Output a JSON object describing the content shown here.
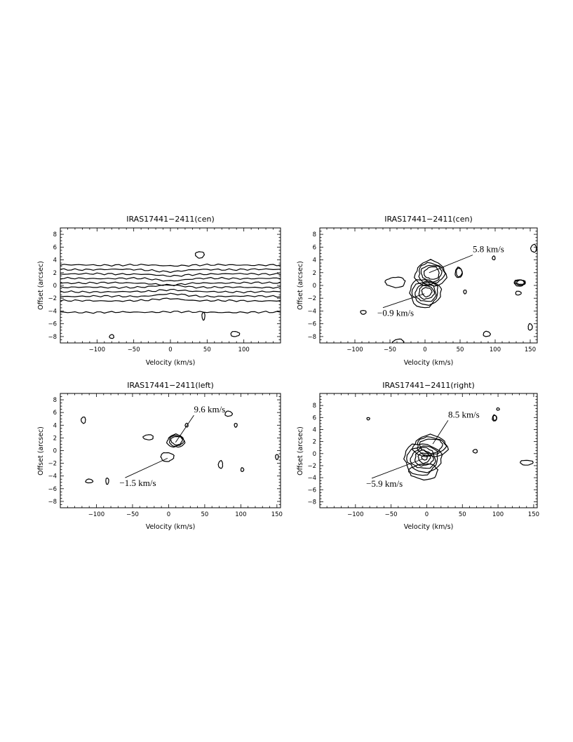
{
  "chart_data": [
    {
      "type": "contour",
      "title": "IRAS17441−2411(cen)",
      "xlabel": "Velocity (km/s)",
      "ylabel": "Offset (arcsec)",
      "xlim": [
        -150,
        150
      ],
      "ylim": [
        -9,
        9
      ],
      "xticks": [
        -100,
        -50,
        0,
        50,
        100
      ],
      "yticks": [
        -8,
        -6,
        -4,
        -2,
        0,
        2,
        4,
        6,
        8
      ],
      "grid": false,
      "annotations": [],
      "features": [
        {
          "kind": "horizontal-band",
          "y": 3.2
        },
        {
          "kind": "horizontal-band",
          "y": 2.5
        },
        {
          "kind": "horizontal-band",
          "y": 1.8
        },
        {
          "kind": "horizontal-band",
          "y": 1.1
        },
        {
          "kind": "horizontal-band",
          "y": 0.4
        },
        {
          "kind": "horizontal-band",
          "y": -0.3
        },
        {
          "kind": "horizontal-band",
          "y": -1.0
        },
        {
          "kind": "horizontal-band",
          "y": -1.7
        },
        {
          "kind": "horizontal-band",
          "y": -2.4
        },
        {
          "kind": "horizontal-band",
          "y": -4.2
        },
        {
          "kind": "blob",
          "x": 40,
          "y": 4.8,
          "sx": 6,
          "sy": 0.5,
          "levels": 1
        },
        {
          "kind": "blob",
          "x": -80,
          "y": -8.0,
          "sx": 3,
          "sy": 0.3,
          "levels": 1
        },
        {
          "kind": "blob",
          "x": 88,
          "y": -7.6,
          "sx": 6,
          "sy": 0.4,
          "levels": 1
        },
        {
          "kind": "blob",
          "x": 45,
          "y": -4.8,
          "sx": 2,
          "sy": 0.6,
          "levels": 1
        }
      ]
    },
    {
      "type": "contour",
      "title": "IRAS17441−2411(cen)",
      "xlabel": "Velocity (km/s)",
      "ylabel": "Offset (arcsec)",
      "xlim": [
        -150,
        160
      ],
      "ylim": [
        -9,
        9
      ],
      "xticks": [
        -100,
        -50,
        0,
        50,
        100,
        150
      ],
      "yticks": [
        -8,
        -6,
        -4,
        -2,
        0,
        2,
        4,
        6,
        8
      ],
      "grid": false,
      "annotations": [
        {
          "text": "5.8 km/s",
          "x": 5.8,
          "y": 2.0,
          "label_x": 68,
          "label_y": 5.2
        },
        {
          "text": "−0.9 km/s",
          "x": -0.9,
          "y": -1.3,
          "label_x": -68,
          "label_y": -4.8
        }
      ],
      "features": [
        {
          "kind": "blob",
          "x": 8,
          "y": 1.8,
          "sx": 22,
          "sy": 2.0,
          "levels": 4
        },
        {
          "kind": "blob",
          "x": 0,
          "y": -1.2,
          "sx": 22,
          "sy": 2.2,
          "levels": 5
        },
        {
          "kind": "blob",
          "x": -42,
          "y": 0.5,
          "sx": 14,
          "sy": 0.8,
          "levels": 1
        },
        {
          "kind": "blob",
          "x": 48,
          "y": 2.0,
          "sx": 5,
          "sy": 0.8,
          "levels": 2
        },
        {
          "kind": "blob",
          "x": 135,
          "y": 0.4,
          "sx": 8,
          "sy": 0.5,
          "levels": 3
        },
        {
          "kind": "blob",
          "x": -38,
          "y": -9.0,
          "sx": 8,
          "sy": 0.6,
          "levels": 1
        },
        {
          "kind": "blob",
          "x": 88,
          "y": -7.6,
          "sx": 5,
          "sy": 0.4,
          "levels": 1
        },
        {
          "kind": "blob",
          "x": -88,
          "y": -4.2,
          "sx": 4,
          "sy": 0.3,
          "levels": 1
        },
        {
          "kind": "blob",
          "x": 155,
          "y": 5.8,
          "sx": 4,
          "sy": 0.6,
          "levels": 1
        },
        {
          "kind": "blob",
          "x": 150,
          "y": -6.5,
          "sx": 3,
          "sy": 0.5,
          "levels": 1
        },
        {
          "kind": "blob",
          "x": 57,
          "y": -1.0,
          "sx": 2,
          "sy": 0.3,
          "levels": 1
        },
        {
          "kind": "blob",
          "x": 98,
          "y": 4.3,
          "sx": 2,
          "sy": 0.3,
          "levels": 1
        },
        {
          "kind": "blob",
          "x": 133,
          "y": -1.2,
          "sx": 4,
          "sy": 0.3,
          "levels": 1
        }
      ]
    },
    {
      "type": "contour",
      "title": "IRAS17441−2411(left)",
      "xlabel": "Velocity (km/s)",
      "ylabel": "Offset (arcsec)",
      "xlim": [
        -150,
        155
      ],
      "ylim": [
        -9,
        9
      ],
      "xticks": [
        -100,
        -50,
        0,
        50,
        100,
        150
      ],
      "yticks": [
        -8,
        -6,
        -4,
        -2,
        0,
        2,
        4,
        6,
        8
      ],
      "grid": false,
      "annotations": [
        {
          "text": "9.6 km/s",
          "x": 9.6,
          "y": 1.3,
          "label_x": 35,
          "label_y": 6.0
        },
        {
          "text": "−1.5 km/s",
          "x": -1.5,
          "y": -1.2,
          "label_x": -68,
          "label_y": -5.6
        }
      ],
      "features": [
        {
          "kind": "blob",
          "x": 10,
          "y": 1.5,
          "sx": 12,
          "sy": 1.0,
          "levels": 3
        },
        {
          "kind": "blob",
          "x": -2,
          "y": -1.0,
          "sx": 9,
          "sy": 0.7,
          "levels": 1
        },
        {
          "kind": "blob",
          "x": -118,
          "y": 4.8,
          "sx": 3,
          "sy": 0.5,
          "levels": 1
        },
        {
          "kind": "blob",
          "x": -110,
          "y": -4.8,
          "sx": 5,
          "sy": 0.3,
          "levels": 1
        },
        {
          "kind": "blob",
          "x": -85,
          "y": -4.8,
          "sx": 2,
          "sy": 0.5,
          "levels": 1
        },
        {
          "kind": "blob",
          "x": -28,
          "y": 2.1,
          "sx": 7,
          "sy": 0.4,
          "levels": 1
        },
        {
          "kind": "blob",
          "x": 83,
          "y": 5.8,
          "sx": 5,
          "sy": 0.4,
          "levels": 1
        },
        {
          "kind": "blob",
          "x": 93,
          "y": 4.0,
          "sx": 2,
          "sy": 0.3,
          "levels": 1
        },
        {
          "kind": "blob",
          "x": 72,
          "y": -2.2,
          "sx": 3,
          "sy": 0.6,
          "levels": 1
        },
        {
          "kind": "blob",
          "x": 102,
          "y": -3.0,
          "sx": 2,
          "sy": 0.3,
          "levels": 1
        },
        {
          "kind": "blob",
          "x": 150,
          "y": -1.0,
          "sx": 2,
          "sy": 0.4,
          "levels": 1
        },
        {
          "kind": "blob",
          "x": 25,
          "y": 4.0,
          "sx": 2,
          "sy": 0.3,
          "levels": 1
        }
      ]
    },
    {
      "type": "contour",
      "title": "IRAS17441−2411(right)",
      "xlabel": "Velocity (km/s)",
      "ylabel": "Offset (arcsec)",
      "xlim": [
        -150,
        155
      ],
      "ylim": [
        -9,
        10
      ],
      "xticks": [
        -100,
        -50,
        0,
        50,
        100,
        150
      ],
      "yticks": [
        -8,
        -6,
        -4,
        -2,
        0,
        2,
        4,
        6,
        8
      ],
      "grid": false,
      "annotations": [
        {
          "text": "8.5 km/s",
          "x": 8.5,
          "y": 1.6,
          "label_x": 30,
          "label_y": 6.0
        },
        {
          "text": "−5.9 km/s",
          "x": -5.9,
          "y": -0.9,
          "label_x": -85,
          "label_y": -5.5
        }
      ],
      "features": [
        {
          "kind": "blob",
          "x": 5,
          "y": 1.2,
          "sx": 24,
          "sy": 1.8,
          "levels": 3
        },
        {
          "kind": "blob",
          "x": -6,
          "y": -0.9,
          "sx": 26,
          "sy": 2.6,
          "levels": 6
        },
        {
          "kind": "blob",
          "x": -4,
          "y": -3.0,
          "sx": 20,
          "sy": 1.3,
          "levels": 1
        },
        {
          "kind": "blob",
          "x": 95,
          "y": 5.9,
          "sx": 3,
          "sy": 0.5,
          "levels": 2
        },
        {
          "kind": "blob",
          "x": 140,
          "y": -1.5,
          "sx": 9,
          "sy": 0.4,
          "levels": 1
        },
        {
          "kind": "blob",
          "x": 68,
          "y": 0.4,
          "sx": 3,
          "sy": 0.3,
          "levels": 1
        },
        {
          "kind": "blob",
          "x": 100,
          "y": 7.4,
          "sx": 2,
          "sy": 0.2,
          "levels": 1
        },
        {
          "kind": "blob",
          "x": -82,
          "y": 5.8,
          "sx": 2,
          "sy": 0.2,
          "levels": 1
        }
      ]
    }
  ]
}
